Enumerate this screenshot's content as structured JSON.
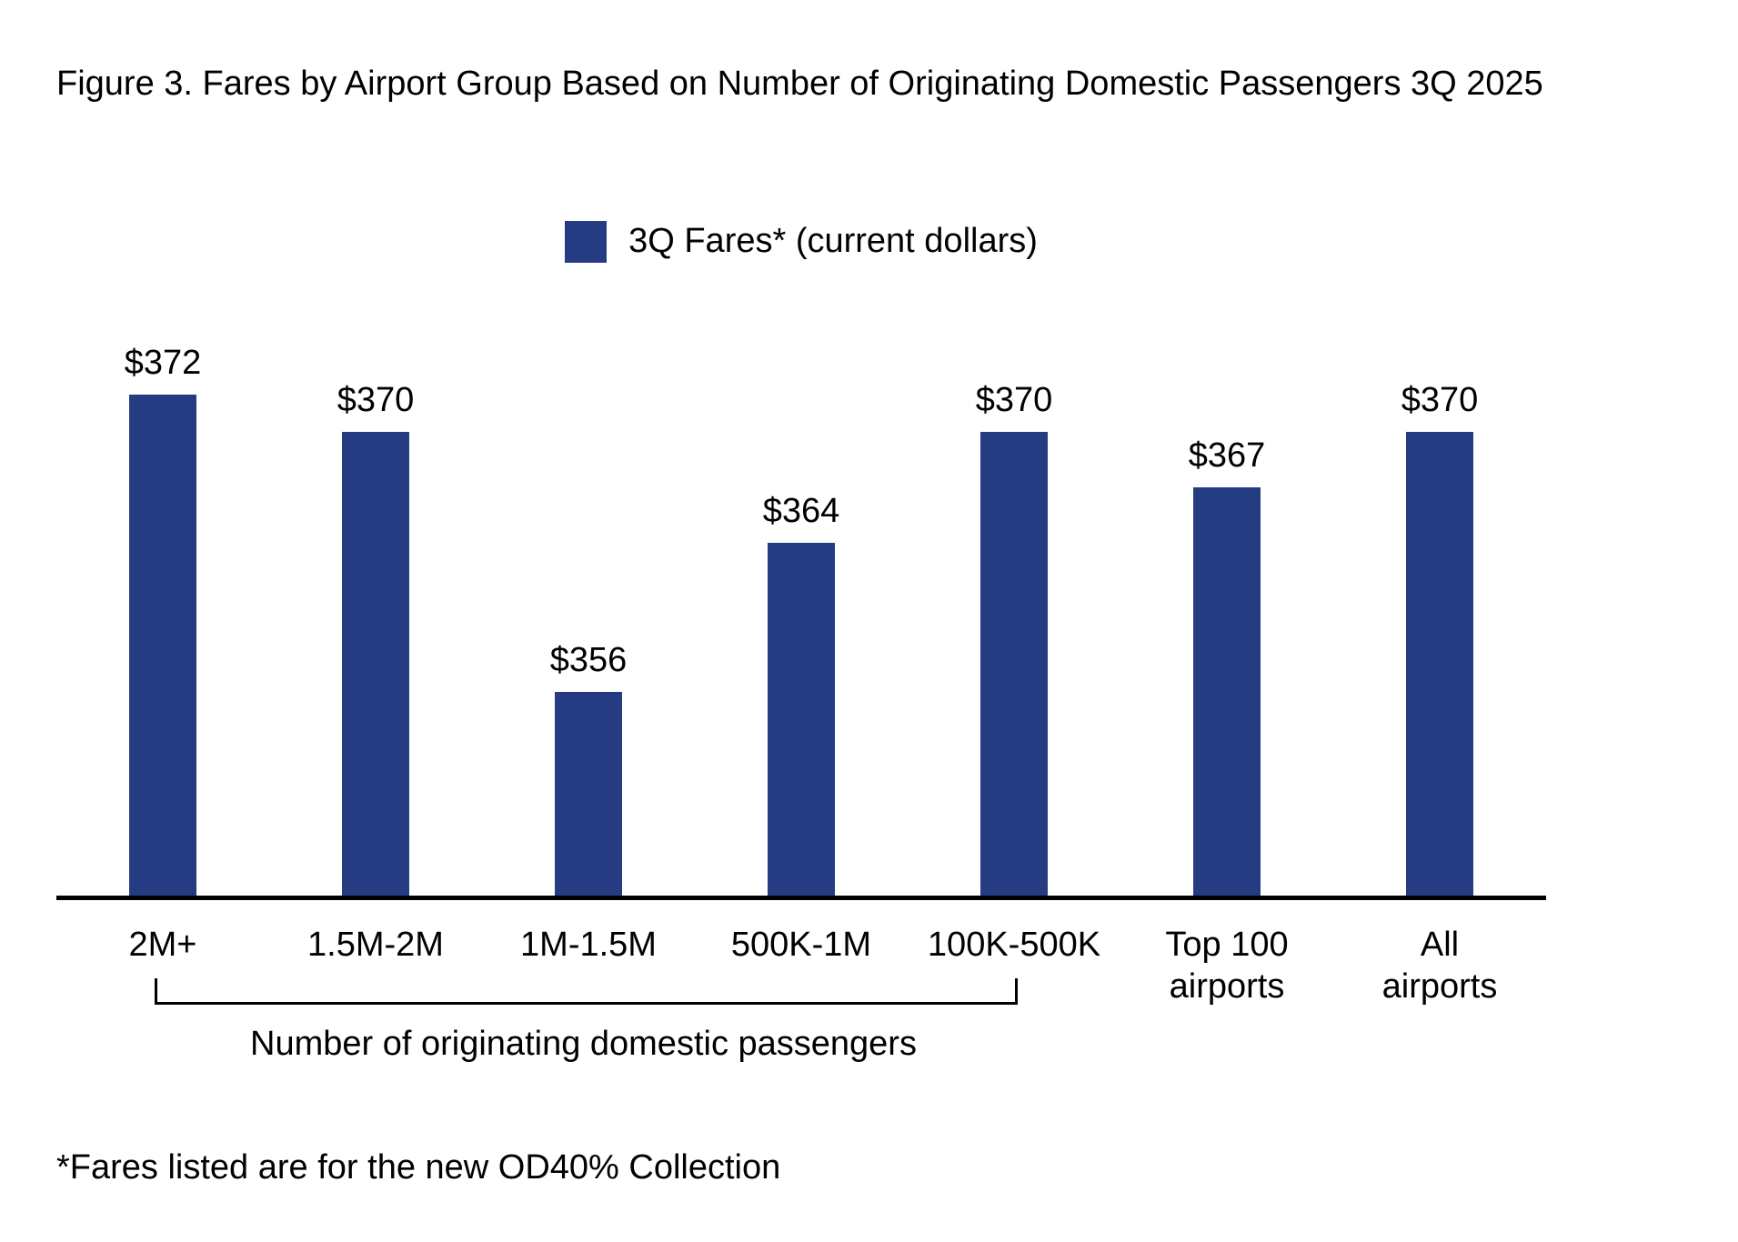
{
  "footnote": "*Fares listed are for the new OD40% Collection",
  "colors": {
    "bar": "#263C82",
    "axis": "#000000",
    "text": "#000000"
  },
  "chart_data": {
    "type": "bar",
    "title": "Figure 3. Fares by Airport Group Based on Number of Originating Domestic Passengers 3Q 2025",
    "legend": [
      "3Q Fares* (current dollars)"
    ],
    "legend_position": "top-center",
    "categories": [
      "2M+",
      "1.5M-2M",
      "1M-1.5M",
      "500K-1M",
      "100K-500K",
      "Top 100\nairports",
      "All\nairports"
    ],
    "values": [
      372,
      370,
      356,
      364,
      370,
      367,
      370
    ],
    "data_labels": [
      "$372",
      "$370",
      "$356",
      "$364",
      "$370",
      "$367",
      "$370"
    ],
    "value_prefix": "$",
    "series_name": "3Q Fares* (current dollars)",
    "group_axis_label": "Number of originating domestic passengers",
    "group_bracket_categories": [
      "2M+",
      "1.5M-2M",
      "1M-1.5M",
      "500K-1M",
      "100K-500K"
    ],
    "xlabel": "",
    "ylabel": "",
    "ylim": [
      345,
      375
    ],
    "y_axis_visible": false,
    "grid": false
  }
}
